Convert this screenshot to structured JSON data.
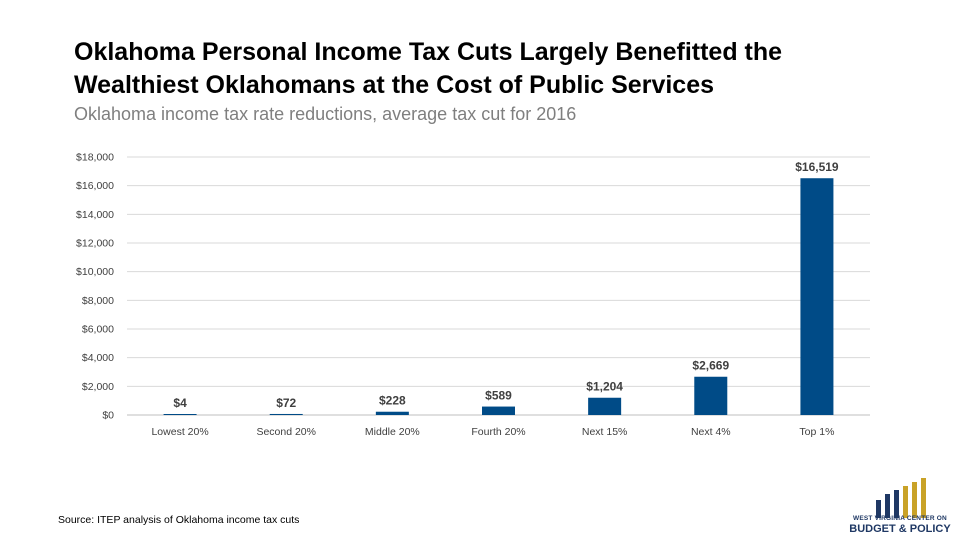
{
  "header": {
    "title_line1": "Oklahoma Personal Income Tax Cuts Largely Benefitted the",
    "title_line2": "Wealthiest Oklahomans at the Cost of Public Services",
    "subtitle": "Oklahoma income tax rate reductions, average tax cut for 2016"
  },
  "chart_data": {
    "type": "bar",
    "title": "Oklahoma Personal Income Tax Cuts Largely Benefitted the Wealthiest Oklahomans at the Cost of Public Services",
    "subtitle": "Oklahoma income tax rate reductions, average tax cut for 2016",
    "categories": [
      "Lowest 20%",
      "Second 20%",
      "Middle 20%",
      "Fourth 20%",
      "Next 15%",
      "Next 4%",
      "Top 1%"
    ],
    "values": [
      4,
      72,
      228,
      589,
      1204,
      2669,
      16519
    ],
    "data_labels": [
      "$4",
      "$72",
      "$228",
      "$589",
      "$1,204",
      "$2,669",
      "$16,519"
    ],
    "yticks": [
      0,
      2000,
      4000,
      6000,
      8000,
      10000,
      12000,
      14000,
      16000,
      18000
    ],
    "ytick_labels": [
      "$0",
      "$2,000",
      "$4,000",
      "$6,000",
      "$8,000",
      "$10,000",
      "$12,000",
      "$14,000",
      "$16,000",
      "$18,000"
    ],
    "ylim": [
      0,
      18000
    ],
    "xlabel": "",
    "ylabel": "",
    "grid": true,
    "bar_color": "#004b87",
    "grid_color": "#d9d9d9"
  },
  "footer": {
    "source": "Source:  ITEP analysis of Oklahoma income tax cuts",
    "logo_line1": "WEST VIRGINIA CENTER ON",
    "logo_line2": "BUDGET & POLICY",
    "logo_icon": "bar-chart-logo-icon"
  }
}
